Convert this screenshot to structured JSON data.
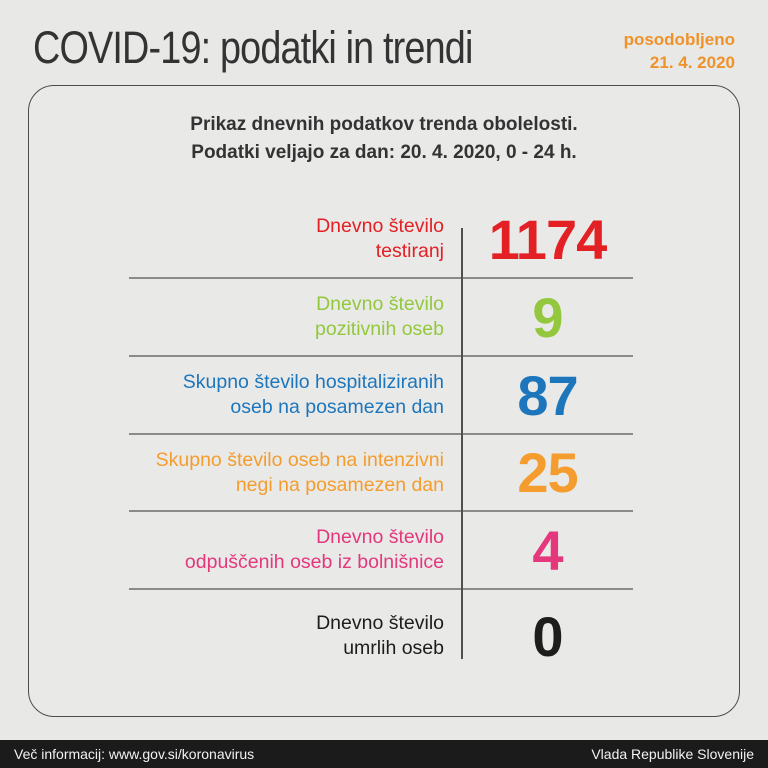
{
  "page": {
    "title": "COVID-19: podatki in trendi",
    "updated_label": "posodobljeno",
    "updated_date": "21. 4. 2020"
  },
  "card": {
    "header_line1": "Prikaz dnevnih podatkov trenda obolelosti.",
    "header_line2": "Podatki veljajo za dan: 20. 4. 2020, 0 - 24 h.",
    "rows": [
      {
        "label_line1": "Dnevno število",
        "label_line2": "testiranj",
        "value": "1174",
        "color": "#e32024"
      },
      {
        "label_line1": "Dnevno število",
        "label_line2": "pozitivnih oseb",
        "value": "9",
        "color": "#93c83e"
      },
      {
        "label_line1": "Skupno število hospitaliziranih",
        "label_line2": "oseb na posamezen dan",
        "value": "87",
        "color": "#1d76bc"
      },
      {
        "label_line1": "Skupno število oseb na intenzivni",
        "label_line2": "negi na posamezen dan",
        "value": "25",
        "color": "#f49d2e"
      },
      {
        "label_line1": "Dnevno število",
        "label_line2": "odpuščenih oseb iz bolnišnice",
        "value": "4",
        "color": "#e4377c"
      },
      {
        "label_line1": "Dnevno število",
        "label_line2": "umrlih oseb",
        "value": "0",
        "color": "#1d1d1b"
      }
    ]
  },
  "footer": {
    "left": "Več informacij: www.gov.si/koronavirus",
    "right": "Vlada Republike Slovenije"
  },
  "colors": {
    "background": "#e8e8e7",
    "title_text": "#333333",
    "updated_accent": "#ef9229",
    "card_border": "#4c4c4c",
    "row_separator": "#8b8b8b",
    "column_divider": "#4f4f4f",
    "footer_background": "#1b1b1b",
    "footer_text": "#f2f2f2"
  }
}
